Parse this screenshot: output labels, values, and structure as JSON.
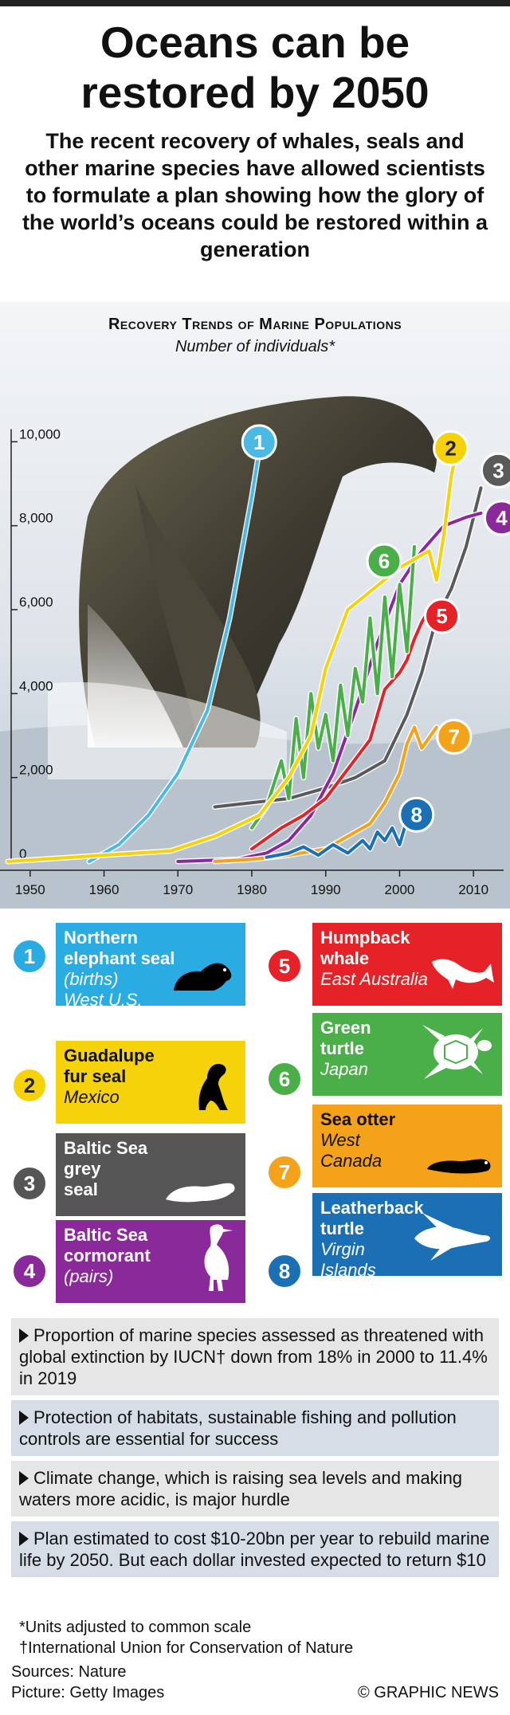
{
  "header": {
    "title_line1": "Oceans can be",
    "title_line2": "restored by 2050",
    "subtitle": "The recent recovery of whales, seals and other marine species have allowed scientists to formulate a plan showing how the glory of the world’s oceans could be restored within a generation"
  },
  "chart_data": {
    "type": "line",
    "title": "Recovery Trends of Marine Populations",
    "subtitle": "Number of individuals*",
    "xlim": [
      1947,
      2013
    ],
    "ylim": [
      0,
      10500
    ],
    "x_ticks": [
      1950,
      1960,
      1970,
      1980,
      1990,
      2000,
      2010
    ],
    "y_ticks": [
      0,
      2000,
      4000,
      6000,
      8000,
      10000
    ],
    "y_tick_labels": [
      "0",
      "2,000",
      "4,000",
      "6,000",
      "8,000",
      "10,000"
    ],
    "series": [
      {
        "id": 1,
        "color": "#4cb8e6",
        "x": [
          1958,
          1962,
          1966,
          1970,
          1974,
          1977,
          1980,
          1981
        ],
        "y": [
          0,
          400,
          1100,
          2100,
          3600,
          5800,
          8700,
          9800
        ]
      },
      {
        "id": 2,
        "color": "#f6d20b",
        "x": [
          1947,
          1960,
          1969,
          1975,
          1981,
          1985,
          1988,
          1990,
          1993,
          2000,
          2004,
          2005,
          2006,
          2007,
          2008
        ],
        "y": [
          0,
          150,
          250,
          600,
          1100,
          2000,
          3000,
          4600,
          6000,
          7000,
          7400,
          6700,
          7800,
          9200,
          10000
        ]
      },
      {
        "id": 3,
        "color": "#5a5a5a",
        "x": [
          1975,
          1980,
          1985,
          1990,
          1994,
          1998,
          2001,
          2003,
          2005,
          2007,
          2009,
          2011
        ],
        "y": [
          1300,
          1400,
          1500,
          1750,
          2000,
          2400,
          3500,
          4500,
          5800,
          6500,
          7500,
          8900
        ]
      },
      {
        "id": 4,
        "color": "#8a2a9a",
        "x": [
          1970,
          1978,
          1982,
          1985,
          1988,
          1991,
          1994,
          1997,
          2000,
          2003,
          2006,
          2009,
          2011
        ],
        "y": [
          0,
          50,
          200,
          500,
          1100,
          2100,
          3600,
          5200,
          6600,
          7400,
          8000,
          8200,
          8300
        ]
      },
      {
        "id": 5,
        "color": "#e52227",
        "x": [
          1980,
          1984,
          1987,
          1990,
          1993,
          1996,
          1998,
          2000,
          2001,
          2002,
          2003,
          2004
        ],
        "y": [
          300,
          800,
          1100,
          1500,
          2200,
          2900,
          4100,
          4500,
          4800,
          5300,
          5700,
          6000
        ]
      },
      {
        "id": 6,
        "color": "#4aaf48",
        "x": [
          1980,
          1982,
          1984,
          1985,
          1986,
          1987,
          1988,
          1989,
          1990,
          1991,
          1992,
          1993,
          1994,
          1995,
          1996,
          1997,
          1998,
          1999,
          2000,
          2001,
          2002
        ],
        "y": [
          800,
          1300,
          2400,
          1500,
          3400,
          2000,
          4000,
          2700,
          3500,
          2400,
          4200,
          3000,
          4600,
          3800,
          5800,
          4000,
          6300,
          4400,
          6600,
          5000,
          7500
        ]
      },
      {
        "id": 7,
        "color": "#f5a21b",
        "x": [
          1975,
          1980,
          1985,
          1990,
          1993,
          1996,
          1998,
          2000,
          2001,
          2002,
          2003,
          2005
        ],
        "y": [
          0,
          50,
          150,
          300,
          600,
          900,
          1400,
          2100,
          2800,
          3200,
          2700,
          3200
        ]
      },
      {
        "id": 8,
        "color": "#1a6fb5",
        "x": [
          1982,
          1985,
          1987,
          1989,
          1991,
          1993,
          1995,
          1996,
          1997,
          1998,
          1999,
          2000,
          2001
        ],
        "y": [
          100,
          200,
          350,
          150,
          400,
          200,
          500,
          300,
          700,
          500,
          800,
          400,
          1000
        ]
      }
    ]
  },
  "legend": [
    {
      "num": "1",
      "color": "#2aace2",
      "name": "Northern\nelephant seal",
      "note": "(births)",
      "loc": "West U.S.",
      "icon": "elephant-seal-icon"
    },
    {
      "num": "2",
      "color": "#f6d20b",
      "name": "Guadalupe\nfur seal",
      "note": "",
      "loc": "Mexico",
      "icon": "fur-seal-icon"
    },
    {
      "num": "3",
      "color": "#555555",
      "name": "Baltic Sea\ngrey\nseal",
      "note": "",
      "loc": "",
      "icon": "grey-seal-icon"
    },
    {
      "num": "4",
      "color": "#8a2a9a",
      "name": "Baltic Sea\ncormorant",
      "note": "(pairs)",
      "loc": "",
      "icon": "cormorant-icon"
    },
    {
      "num": "5",
      "color": "#e52227",
      "name": "Humpback\nwhale",
      "note": "",
      "loc": "East Australia",
      "icon": "whale-icon"
    },
    {
      "num": "6",
      "color": "#4aaf48",
      "name": "Green\nturtle",
      "note": "",
      "loc": "Japan",
      "icon": "green-turtle-icon"
    },
    {
      "num": "7",
      "color": "#f5a21b",
      "name": "Sea otter",
      "note": "",
      "loc": "West\nCanada",
      "icon": "sea-otter-icon"
    },
    {
      "num": "8",
      "color": "#1a6fb5",
      "name": "Leatherback\nturtle",
      "note": "",
      "loc": "Virgin\nIslands",
      "icon": "leatherback-turtle-icon"
    }
  ],
  "facts": [
    "Proportion of marine species assessed as threatened with global extinction by IUCN† down from 18% in 2000 to 11.4% in 2019",
    "Protection of habitats, sustainable fishing and pollution controls are essential for success",
    "Climate change, which is raising sea levels and making waters more acidic, is major hurdle",
    "Plan estimated to cost $10-20bn per year to rebuild marine life by 2050. But each dollar invested expected to return $10"
  ],
  "footer": {
    "footnote1": "*Units adjusted to common scale",
    "footnote2": "†International Union for Conservation of Nature",
    "sources": "Sources: Nature",
    "picture": "Picture: Getty Images",
    "credit": "© GRAPHIC NEWS"
  }
}
